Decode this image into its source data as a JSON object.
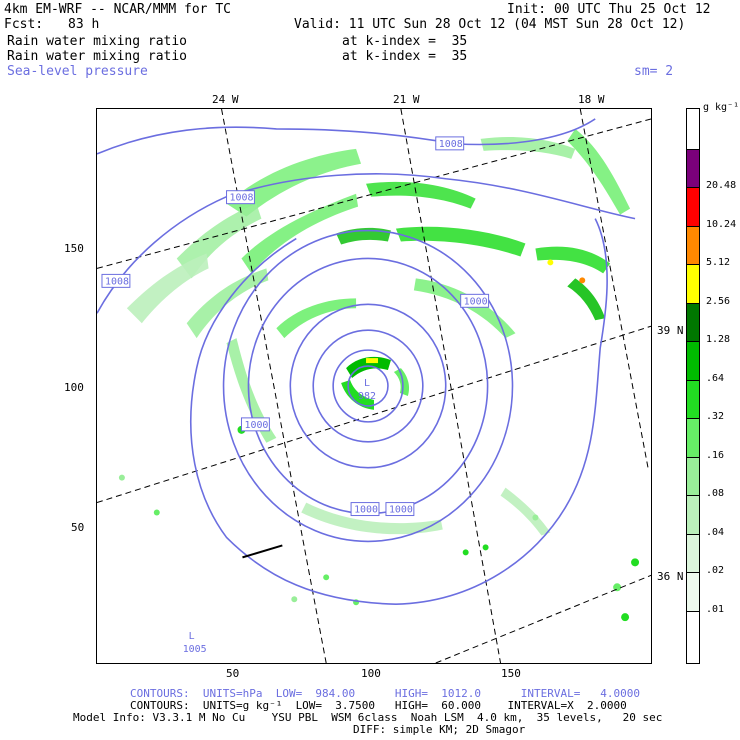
{
  "header": {
    "title": "4km EM-WRF -- NCAR/MMM for TC",
    "init": "Init: 00 UTC Thu 25 Oct 12",
    "fcst_label": "Fcst:",
    "fcst_value": "83 h",
    "valid": "Valid: 11 UTC Sun 28 Oct 12 (04 MST Sun 28 Oct 12)",
    "field1": "Rain water mixing ratio",
    "field1_level": "at k-index =  35",
    "field2": "Rain water mixing ratio",
    "field2_level": "at k-index =  35",
    "field3": "Sea-level pressure",
    "smoothing": "sm= 2"
  },
  "map": {
    "lon_labels": [
      "24 W",
      "21 W",
      "18 W"
    ],
    "lat_labels": [
      "39 N",
      "36 N"
    ],
    "x_ticks": [
      "50",
      "100",
      "150"
    ],
    "y_ticks": [
      "150",
      "100",
      "50"
    ],
    "contour_labels": [
      "1008",
      "1008",
      "1008",
      "1000",
      "1000",
      "1000",
      "1000"
    ],
    "low_marker": "L",
    "low_value": "982",
    "weak_low_marker": "L",
    "weak_low_value": "1005"
  },
  "colorbar": {
    "units": "g kg⁻¹",
    "levels": [
      {
        "label": "20.48",
        "color": "#7b007b"
      },
      {
        "label": "10.24",
        "color": "#ff0000"
      },
      {
        "label": "5.12",
        "color": "#ff8800"
      },
      {
        "label": "2.56",
        "color": "#ffff00"
      },
      {
        "label": "1.28",
        "color": "#007700"
      },
      {
        "label": ".64",
        "color": "#00bb00"
      },
      {
        "label": ".32",
        "color": "#22dd22"
      },
      {
        "label": ".16",
        "color": "#66ee66"
      },
      {
        "label": ".08",
        "color": "#99ee99"
      },
      {
        "label": ".04",
        "color": "#bbf0bb"
      },
      {
        "label": ".02",
        "color": "#ddf6dd"
      },
      {
        "label": ".01",
        "color": "#eefaee"
      },
      {
        "label": "",
        "color": "#ffffff"
      }
    ]
  },
  "footer": {
    "contours1": "CONTOURS:  UNITS=hPa  LOW=  984.00      HIGH=  1012.0      INTERVAL=   4.0000",
    "contours2": "CONTOURS:  UNITS=g kg⁻¹  LOW=  3.7500   HIGH=  60.000    INTERVAL=X  2.0000",
    "model_info": "Model Info: V3.3.1 M No Cu    YSU PBL  WSM 6class  Noah LSM  4.0 km,  35 levels,   20 sec",
    "model_info2": "DIFF: simple KM; 2D Smagor"
  }
}
